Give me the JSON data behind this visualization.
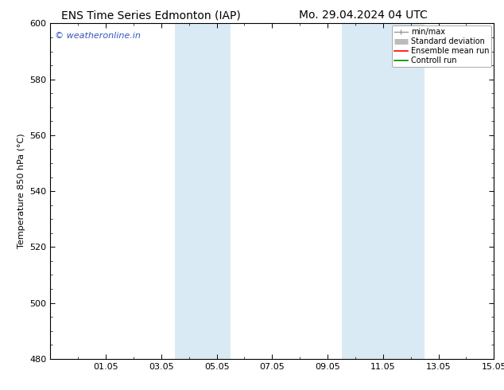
{
  "title_left": "ENS Time Series Edmonton (IAP)",
  "title_right": "Mo. 29.04.2024 04 UTC",
  "ylabel": "Temperature 850 hPa (°C)",
  "ylim": [
    480,
    600
  ],
  "yticks": [
    480,
    500,
    520,
    540,
    560,
    580,
    600
  ],
  "xtick_labels": [
    "01.05",
    "03.05",
    "05.05",
    "07.05",
    "09.05",
    "11.05",
    "13.05",
    "15.05"
  ],
  "xtick_positions": [
    2,
    4,
    6,
    8,
    10,
    12,
    14,
    16
  ],
  "xlim": [
    0,
    16
  ],
  "shade_regions": [
    {
      "x_start": 4.5,
      "x_end": 6.5
    },
    {
      "x_start": 10.5,
      "x_end": 13.5
    }
  ],
  "shade_color": "#daeaf5",
  "background_color": "#ffffff",
  "watermark_text": "© weatheronline.in",
  "watermark_color": "#3355bb",
  "legend_items": [
    {
      "label": "min/max",
      "color": "#999999",
      "lw": 1.0,
      "style": "caps"
    },
    {
      "label": "Standard deviation",
      "color": "#bbbbbb",
      "lw": 5,
      "style": "thick"
    },
    {
      "label": "Ensemble mean run",
      "color": "#ff0000",
      "lw": 1.2,
      "style": "line"
    },
    {
      "label": "Controll run",
      "color": "#008800",
      "lw": 1.2,
      "style": "line"
    }
  ],
  "title_fontsize": 10,
  "ylabel_fontsize": 8,
  "tick_fontsize": 8,
  "watermark_fontsize": 8,
  "legend_fontsize": 7,
  "border_color": "#000000"
}
